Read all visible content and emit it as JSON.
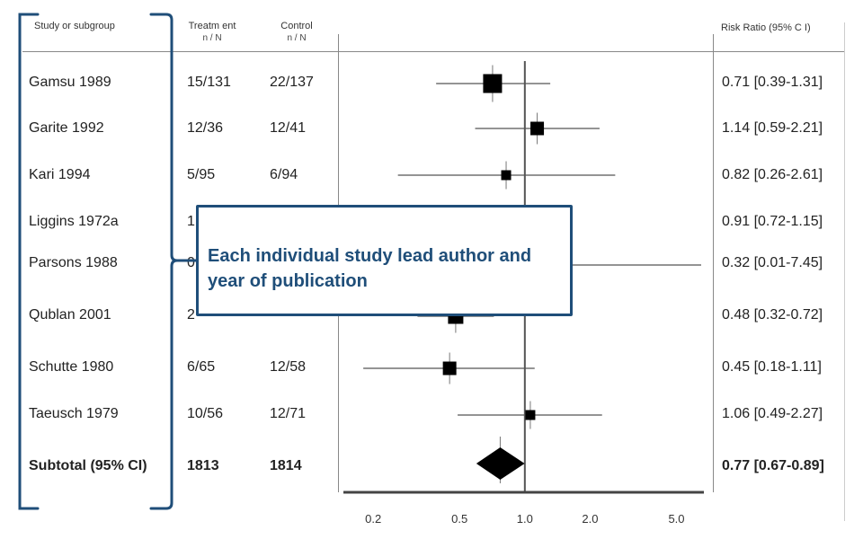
{
  "headers": {
    "study": "Study or subgroup",
    "treatment": "Treatm ent",
    "treatment_sub": "n / N",
    "control": "Control",
    "control_sub": "n / N",
    "rr": "Risk Ratio (95% C I)"
  },
  "rows": [
    {
      "study": "Gamsu 1989",
      "treatment": "15/131",
      "control": "22/137",
      "rr_text": "0.71 [0.39-1.31]"
    },
    {
      "study": "Garite 1992",
      "treatment": "12/36",
      "control": "12/41",
      "rr_text": "1.14 [0.59-2.21]"
    },
    {
      "study": "Kari 1994",
      "treatment": "5/95",
      "control": "6/94",
      "rr_text": "0.82 [0.26-2.61]"
    },
    {
      "study": "Liggins 1972a",
      "treatment": "1",
      "control": "",
      "rr_text": "0.91 [0.72-1.15]"
    },
    {
      "study": "Parsons 1988",
      "treatment": "0",
      "control": "",
      "rr_text": "0.32 [0.01-7.45]"
    },
    {
      "study": "Qublan 2001",
      "treatment": "2",
      "control": "",
      "rr_text": "0.48 [0.32-0.72]"
    },
    {
      "study": "Schutte 1980",
      "treatment": "6/65",
      "control": "12/58",
      "rr_text": "0.45 [0.18-1.11]"
    },
    {
      "study": "Taeusch 1979",
      "treatment": "10/56",
      "control": "12/71",
      "rr_text": "1.06 [0.49-2.27]"
    }
  ],
  "subtotal": {
    "label": "Subtotal (95% CI)",
    "treatment": "1813",
    "control": "1814",
    "rr_text": "0.77 [0.67-0.89]"
  },
  "callout": {
    "text": "Each individual study lead author and year of publication"
  },
  "colors": {
    "bracket": "#1f4e79",
    "callout_border": "#1f4e79",
    "marker": "#000000"
  },
  "chart_data": {
    "type": "scatter",
    "xscale": "log",
    "xlim": [
      0.15,
      6.5
    ],
    "ticks": [
      0.2,
      0.5,
      1.0,
      2.0,
      5.0
    ],
    "tick_labels": [
      "0.2",
      "0.5",
      "1.0",
      "2.0",
      "5.0"
    ],
    "studies": [
      {
        "rr": 0.71,
        "lo": 0.39,
        "hi": 1.31,
        "weight": 3.0
      },
      {
        "rr": 1.14,
        "lo": 0.59,
        "hi": 2.21,
        "weight": 1.8
      },
      {
        "rr": 0.82,
        "lo": 0.26,
        "hi": 2.61,
        "weight": 1.0
      },
      {
        "rr": 0.91,
        "lo": 0.72,
        "hi": 1.15,
        "weight": 1.0
      },
      {
        "rr": 0.32,
        "lo": 0.01,
        "hi": 7.45,
        "weight": 0.5
      },
      {
        "rr": 0.48,
        "lo": 0.32,
        "hi": 0.72,
        "weight": 2.2
      },
      {
        "rr": 0.45,
        "lo": 0.18,
        "hi": 1.11,
        "weight": 1.8
      },
      {
        "rr": 1.06,
        "lo": 0.49,
        "hi": 2.27,
        "weight": 1.0
      }
    ],
    "subtotal": {
      "rr": 0.77,
      "lo": 0.67,
      "hi": 0.89
    }
  }
}
